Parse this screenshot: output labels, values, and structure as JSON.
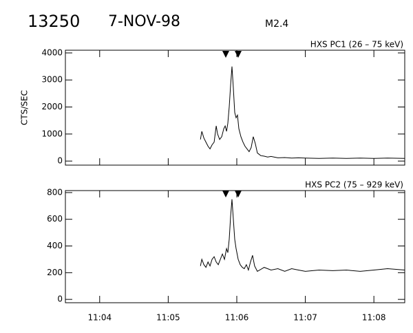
{
  "header": {
    "id": "13250",
    "date": "7-NOV-98",
    "class": "M2.4"
  },
  "chart_data": [
    {
      "type": "line",
      "title": "HXS PC1 (26 – 75 keV)",
      "y_label": "CTS/SEC",
      "color": "#000000",
      "xlim": [
        3.5,
        8.45
      ],
      "xticks": [
        4,
        5,
        6,
        7,
        8
      ],
      "ylim": [
        -150,
        4100
      ],
      "yticks": [
        0,
        1000,
        2000,
        3000,
        4000
      ],
      "x": [
        5.47,
        5.49,
        5.52,
        5.55,
        5.58,
        5.61,
        5.64,
        5.67,
        5.7,
        5.72,
        5.75,
        5.78,
        5.81,
        5.83,
        5.85,
        5.87,
        5.89,
        5.91,
        5.93,
        5.95,
        5.97,
        5.99,
        6.01,
        6.03,
        6.06,
        6.09,
        6.12,
        6.15,
        6.18,
        6.21,
        6.24,
        6.27,
        6.3,
        6.35,
        6.4,
        6.45,
        6.5,
        6.6,
        6.7,
        6.8,
        6.9,
        7.0,
        7.2,
        7.4,
        7.6,
        7.8,
        8.0,
        8.2,
        8.45
      ],
      "series": [
        {
          "name": "HXS PC1",
          "color": "#000000",
          "values": [
            800,
            1100,
            850,
            700,
            550,
            450,
            600,
            700,
            1300,
            1000,
            800,
            900,
            1200,
            1300,
            1100,
            1400,
            2000,
            2800,
            3500,
            2700,
            1800,
            1600,
            1700,
            1200,
            900,
            700,
            550,
            450,
            350,
            500,
            900,
            650,
            300,
            200,
            180,
            150,
            170,
            120,
            130,
            110,
            120,
            110,
            100,
            110,
            100,
            110,
            100,
            110,
            100
          ]
        }
      ]
    },
    {
      "type": "line",
      "title": "HXS PC2 (75 – 929 keV)",
      "color": "#000000",
      "xlim": [
        3.5,
        8.45
      ],
      "xticks": [
        {
          "value": 4,
          "label": "11:04"
        },
        {
          "value": 5,
          "label": "11:05"
        },
        {
          "value": 6,
          "label": "11:06"
        },
        {
          "value": 7,
          "label": "11:07"
        },
        {
          "value": 8,
          "label": "11:08"
        }
      ],
      "ylim": [
        -25,
        815
      ],
      "yticks": [
        0,
        200,
        400,
        600,
        800
      ],
      "x": [
        5.47,
        5.49,
        5.52,
        5.55,
        5.58,
        5.61,
        5.64,
        5.67,
        5.7,
        5.73,
        5.76,
        5.79,
        5.82,
        5.85,
        5.87,
        5.89,
        5.91,
        5.93,
        5.95,
        5.97,
        5.99,
        6.02,
        6.05,
        6.08,
        6.11,
        6.14,
        6.17,
        6.2,
        6.23,
        6.26,
        6.3,
        6.4,
        6.5,
        6.6,
        6.7,
        6.8,
        6.9,
        7.0,
        7.2,
        7.4,
        7.6,
        7.8,
        8.0,
        8.2,
        8.45
      ],
      "series": [
        {
          "name": "HXS PC2",
          "color": "#000000",
          "values": [
            250,
            300,
            260,
            240,
            280,
            250,
            300,
            320,
            280,
            260,
            300,
            340,
            300,
            380,
            350,
            450,
            620,
            750,
            600,
            450,
            380,
            300,
            260,
            240,
            230,
            260,
            220,
            280,
            330,
            250,
            210,
            240,
            220,
            230,
            210,
            230,
            220,
            210,
            220,
            215,
            220,
            210,
            220,
            230,
            220
          ]
        }
      ]
    }
  ]
}
